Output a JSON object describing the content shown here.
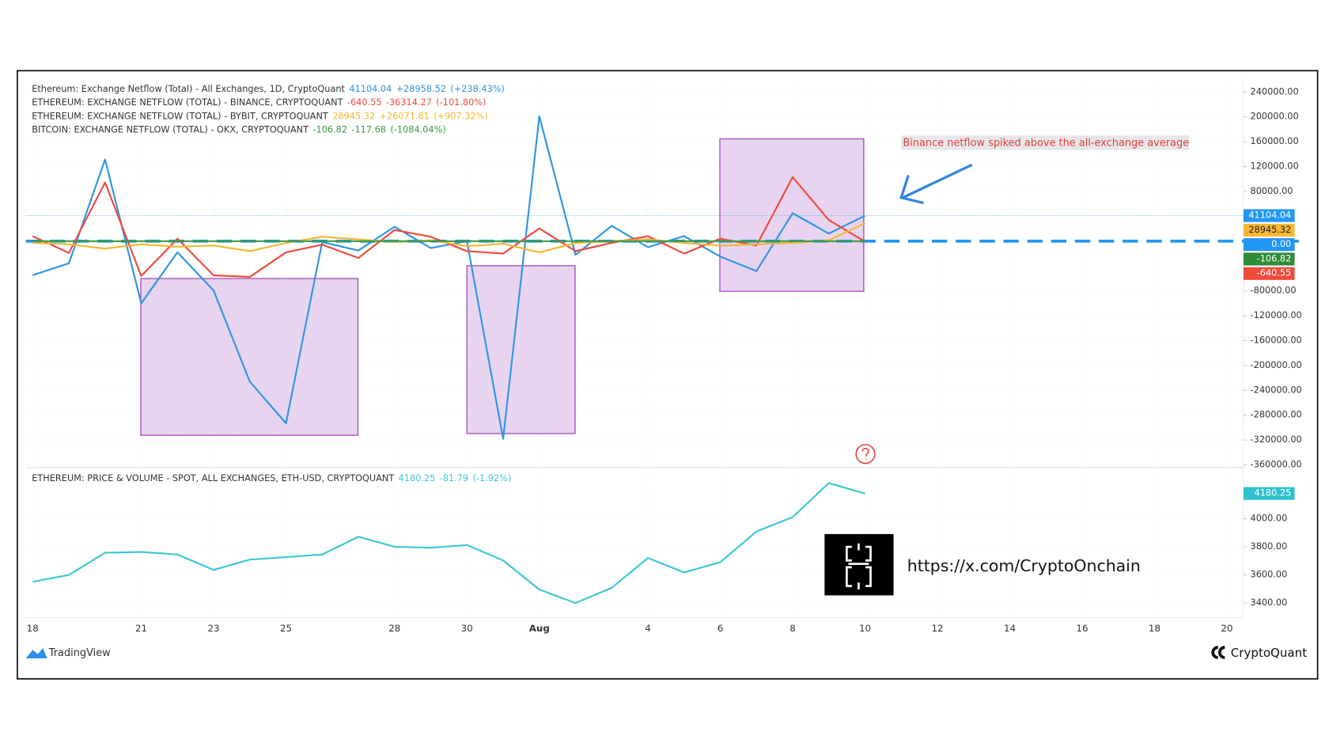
{
  "chart_data": [
    {
      "type": "line",
      "annotation": "Binance netflow spiked above the all-exchange average",
      "series": [
        {
          "name": "Ethereum: Exchange Netflow (Total) - All Exchanges, 1D, CryptoQuant",
          "legend_values": [
            "41104.04",
            "+28958.52",
            "(+238.43%)"
          ],
          "color": "#2f95e3",
          "label_bg": "#2196f3",
          "values": [
            -54800,
            -35600,
            131500,
            -100000,
            -17800,
            -79500,
            -226000,
            -293000,
            -1400,
            -15000,
            23300,
            -11000,
            0,
            -318000,
            201000,
            -22000,
            24700,
            -9600,
            8200,
            -24700,
            -48000,
            45000,
            12300,
            41104.04,
            null,
            null,
            null,
            null,
            null,
            null,
            null,
            null,
            null,
            null
          ],
          "last_label": "41104.04"
        },
        {
          "name": "ETHEREUM: EXCHANGE NETFLOW (TOTAL) - BINANCE, CRYPTOQUANT",
          "legend_values": [
            "-640.55",
            "-36314.27",
            "(-101.80%)"
          ],
          "color": "#ef4a3c",
          "label_bg": "#ef4a3c",
          "values": [
            8000,
            -19000,
            94500,
            -56000,
            4000,
            -55000,
            -57500,
            -18000,
            -5500,
            -27000,
            18000,
            7000,
            -16000,
            -20000,
            20500,
            -16000,
            -2700,
            8000,
            -20000,
            4000,
            -7000,
            103000,
            34000,
            -640.55,
            null,
            null,
            null,
            null,
            null,
            null,
            null,
            null,
            null,
            null
          ],
          "last_label": "-640.55"
        },
        {
          "name": "ETHEREUM: EXCHANGE NETFLOW (TOTAL) - BYBIT, CRYPTOQUANT",
          "legend_values": [
            "28945.32",
            "+26071.81",
            "(+907.32%)"
          ],
          "color": "#f5b731",
          "label_bg": "#f5b731",
          "values": [
            -3000,
            -5000,
            -12000,
            -5000,
            -9000,
            -7000,
            -16000,
            -3000,
            7000,
            3000,
            -1500,
            1500,
            -8000,
            -4000,
            -18000,
            -3000,
            0,
            3000,
            -3000,
            -7000,
            -5000,
            -3000,
            1500,
            28945.32,
            null,
            null,
            null,
            null,
            null,
            null,
            null,
            null,
            null,
            null
          ],
          "last_label": "28945.32"
        },
        {
          "name": "BITCOIN: EXCHANGE NETFLOW (TOTAL) - OKX, CRYPTOQUANT",
          "legend_values": [
            "-106.82",
            "-117.68",
            "(-1084.04%)"
          ],
          "color": "#3b9a45",
          "label_bg": "#2e8b3a",
          "values": [
            0,
            0,
            0,
            0,
            0,
            0,
            0,
            0,
            0,
            0,
            0,
            0,
            0,
            0,
            0,
            0,
            0,
            0,
            0,
            0,
            0,
            0,
            0,
            -106.82,
            null,
            null,
            null,
            null,
            null,
            null,
            null,
            null,
            null,
            null
          ],
          "last_label": "-106.82"
        }
      ],
      "hline": {
        "value": 0,
        "label": "0.00",
        "color": "#2196f3"
      },
      "ylim": [
        -363000,
        262000
      ],
      "yticks": [
        {
          "value": 240000,
          "label": "240000.00"
        },
        {
          "value": 200000,
          "label": "200000.00"
        },
        {
          "value": 160000,
          "label": "160000.00"
        },
        {
          "value": 120000,
          "label": "120000.00"
        },
        {
          "value": 80000,
          "label": "80000.00"
        },
        {
          "value": -80000,
          "label": "-80000.00"
        },
        {
          "value": -120000,
          "label": "-120000.00"
        },
        {
          "value": -160000,
          "label": "-160000.00"
        },
        {
          "value": -200000,
          "label": "-200000.00"
        },
        {
          "value": -240000,
          "label": "-240000.00"
        },
        {
          "value": -280000,
          "label": "-280000.00"
        },
        {
          "value": -320000,
          "label": "-320000.00"
        },
        {
          "value": -360000,
          "label": "-360000.00"
        }
      ],
      "grid": true
    },
    {
      "type": "line",
      "categories": [
        "18",
        null,
        null,
        "21",
        null,
        "23",
        null,
        "25",
        null,
        null,
        "28",
        null,
        "30",
        null,
        "Aug",
        null,
        null,
        "4",
        null,
        "6",
        null,
        "8",
        null,
        "10",
        null,
        "12",
        null,
        "14",
        null,
        "16",
        null,
        "18",
        null,
        "20"
      ],
      "series": [
        {
          "name": "ETHEREUM: PRICE & VOLUME - SPOT, ALL EXCHANGES, ETH-USD, CRYPTOQUANT",
          "legend_values": [
            "4180.25",
            "-81.79",
            "(-1.92%)"
          ],
          "color": "#3cc8d2",
          "label_bg": "#2fc1cc",
          "values": [
            3550,
            3599,
            3757,
            3763,
            3745,
            3635,
            3708,
            3726,
            3745,
            3872,
            3800,
            3793,
            3812,
            3702,
            3495,
            3398,
            3507,
            3720,
            3617,
            3690,
            3909,
            4012,
            4255,
            4180.25,
            null,
            null,
            null,
            null,
            null,
            null,
            null,
            null,
            null,
            null
          ],
          "last_label": "4180.25"
        }
      ],
      "ylim": [
        3313,
        4359
      ],
      "yticks": [
        {
          "value": 4000,
          "label": "4000.00"
        },
        {
          "value": 3800,
          "label": "3800.00"
        },
        {
          "value": 3600,
          "label": "3600.00"
        },
        {
          "value": 3400,
          "label": "3400.00"
        }
      ],
      "grid": true
    }
  ],
  "footer": {
    "tradingview": "TradingView",
    "cryptoquant": "CryptoQuant",
    "watermark": "https://x.com/CryptoOnchain"
  }
}
